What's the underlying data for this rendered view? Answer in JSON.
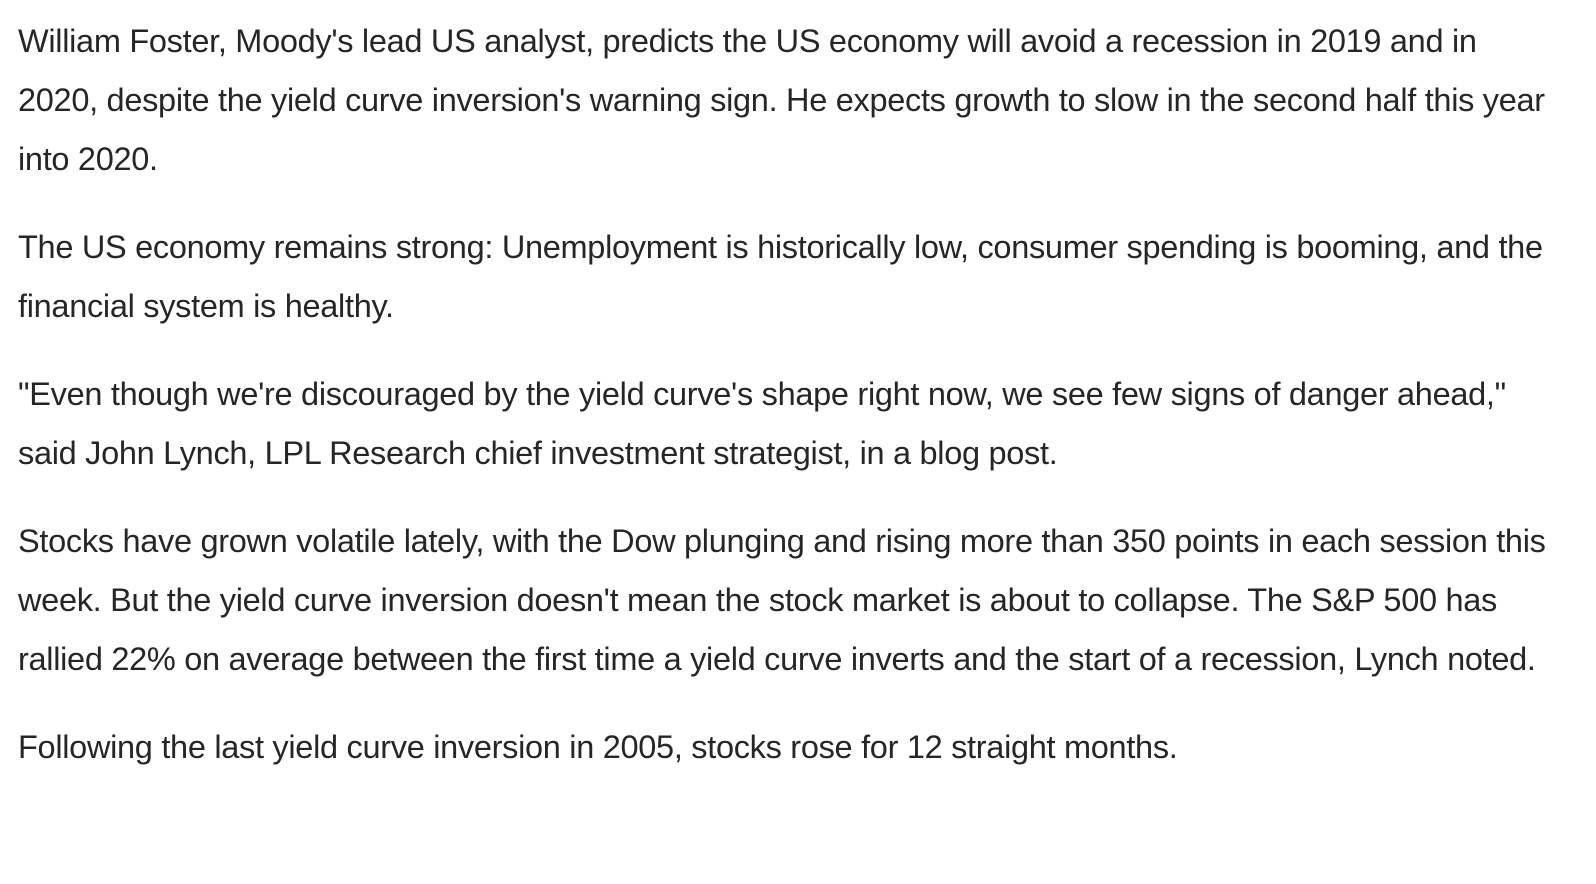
{
  "article": {
    "paragraphs": [
      "William Foster, Moody's lead US analyst, predicts the US economy will avoid a recession in 2019 and in 2020, despite the yield curve inversion's warning sign. He expects growth to slow in the second half this year into 2020.",
      "The US economy remains strong: Unemployment is historically low, consumer spending is booming, and the financial system is healthy.",
      "\"Even though we're discouraged by the yield curve's shape right now, we see few signs of danger ahead,\" said John Lynch, LPL Research chief investment strategist, in a blog post.",
      "Stocks have grown volatile lately, with the Dow plunging and rising more than 350 points in each session this week. But the yield curve inversion doesn't mean the stock market is about to collapse. The S&P 500 has rallied 22% on average between the first time a yield curve inverts and the start of a recession, Lynch noted.",
      "Following the last yield curve inversion in 2005, stocks rose for 12 straight months."
    ]
  }
}
